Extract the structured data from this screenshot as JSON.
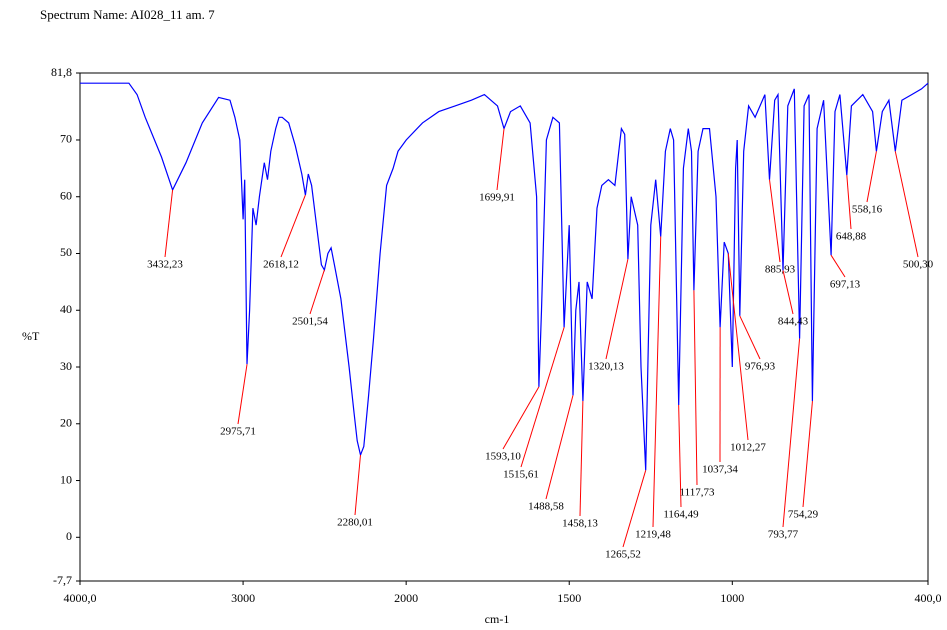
{
  "chart_data": {
    "type": "line",
    "title": "Spectrum Name: AI028_11 am. 7",
    "xlabel": "cm-1",
    "ylabel": "%T",
    "color": "#0000ff",
    "annotation_color": "#ff0000",
    "xlim": [
      4000,
      400
    ],
    "xscale_break": 2000,
    "xticks": [
      {
        "value": 4000,
        "label": "4000,0"
      },
      3000,
      2000,
      1500,
      1000,
      {
        "value": 400,
        "label": "400,0"
      }
    ],
    "ylim": [
      -7.7,
      81.8
    ],
    "yticks": [
      {
        "value": 81.8,
        "label": "81,8"
      },
      70,
      60,
      50,
      40,
      30,
      20,
      10,
      0,
      {
        "value": -7.7,
        "label": "-7,7"
      }
    ],
    "x": [
      4000,
      3700,
      3650,
      3600,
      3500,
      3432.23,
      3350,
      3250,
      3150,
      3080,
      3050,
      3020,
      3000,
      2990,
      2975.71,
      2960,
      2940,
      2920,
      2900,
      2870,
      2850,
      2830,
      2800,
      2780,
      2760,
      2720,
      2680,
      2640,
      2618.12,
      2600,
      2580,
      2550,
      2520,
      2501.54,
      2480,
      2460,
      2440,
      2400,
      2350,
      2320,
      2300,
      2280.01,
      2260,
      2230,
      2200,
      2160,
      2120,
      2080,
      2050,
      2000,
      1950,
      1900,
      1850,
      1800,
      1760,
      1720,
      1699.91,
      1680,
      1650,
      1620,
      1600,
      1593.1,
      1585,
      1570,
      1550,
      1530,
      1515.61,
      1500,
      1488.58,
      1480,
      1470,
      1458.13,
      1445,
      1430,
      1415,
      1400,
      1380,
      1360,
      1340,
      1330,
      1320.13,
      1310,
      1290,
      1280,
      1265.52,
      1250,
      1235,
      1219.48,
      1205,
      1190,
      1180,
      1164.49,
      1150,
      1135,
      1125,
      1117.73,
      1105,
      1090,
      1070,
      1050,
      1037.34,
      1025,
      1012.27,
      1000,
      990,
      985,
      976.93,
      965,
      950,
      930,
      900,
      885.93,
      870,
      860,
      844.43,
      830,
      810,
      793.77,
      780,
      765,
      754.29,
      740,
      720,
      697.13,
      685,
      670,
      648.88,
      635,
      600,
      570,
      558.16,
      540,
      520,
      500.3,
      480,
      450,
      420,
      400
    ],
    "values": [
      80,
      80,
      78,
      74,
      67,
      61.2,
      66,
      73,
      77.5,
      77,
      74,
      70,
      56,
      63,
      30.5,
      40,
      58,
      55,
      60,
      66,
      63,
      68,
      72,
      74,
      74,
      73,
      69,
      64,
      60.3,
      64,
      62,
      55,
      48,
      47.1,
      50,
      51,
      48,
      42,
      30,
      22,
      17,
      14.5,
      16,
      25,
      35,
      50,
      62,
      65,
      68,
      70,
      73,
      75,
      76,
      77,
      78,
      76,
      72,
      75,
      76,
      73,
      60,
      26.5,
      40,
      70,
      74,
      73,
      37,
      55,
      25,
      40,
      45,
      24,
      45,
      42,
      58,
      62,
      63,
      62,
      72,
      71,
      49,
      60,
      55,
      30,
      11.8,
      55,
      63,
      53,
      68,
      72,
      70,
      23.3,
      65,
      72,
      68,
      43.5,
      68,
      72,
      72,
      60,
      37,
      52,
      50,
      30,
      65,
      70,
      39,
      68,
      76,
      74,
      78,
      63,
      77,
      78,
      47,
      76,
      79,
      35,
      76,
      78,
      24,
      72,
      77,
      49.7,
      75,
      78,
      63.8,
      76,
      78,
      75,
      68,
      75,
      77,
      68,
      77,
      78,
      79,
      80
    ],
    "annotations": [
      {
        "x": 3432.23,
        "y": 61.2,
        "label": "3432,23"
      },
      {
        "x": 2975.71,
        "y": 30.5,
        "label": "2975,71"
      },
      {
        "x": 2618.12,
        "y": 60.3,
        "label": "2618,12"
      },
      {
        "x": 2501.54,
        "y": 47.1,
        "label": "2501,54"
      },
      {
        "x": 2280.01,
        "y": 14.5,
        "label": "2280,01"
      },
      {
        "x": 1699.91,
        "y": 72,
        "label": "1699,91"
      },
      {
        "x": 1593.1,
        "y": 26.5,
        "label": "1593,10"
      },
      {
        "x": 1515.61,
        "y": 37,
        "label": "1515,61"
      },
      {
        "x": 1488.58,
        "y": 25,
        "label": "1488,58"
      },
      {
        "x": 1458.13,
        "y": 24,
        "label": "1458,13"
      },
      {
        "x": 1320.13,
        "y": 49,
        "label": "1320,13"
      },
      {
        "x": 1265.52,
        "y": 11.8,
        "label": "1265,52"
      },
      {
        "x": 1219.48,
        "y": 53,
        "label": "1219,48"
      },
      {
        "x": 1164.49,
        "y": 23.3,
        "label": "1164,49"
      },
      {
        "x": 1117.73,
        "y": 43.5,
        "label": "1117,73"
      },
      {
        "x": 1037.34,
        "y": 37,
        "label": "1037,34"
      },
      {
        "x": 1012.27,
        "y": 50,
        "label": "1012,27"
      },
      {
        "x": 976.93,
        "y": 39,
        "label": "976,93"
      },
      {
        "x": 885.93,
        "y": 63,
        "label": "885,93"
      },
      {
        "x": 844.43,
        "y": 47,
        "label": "844,43"
      },
      {
        "x": 697.13,
        "y": 49.7,
        "label": "697,13"
      },
      {
        "x": 793.77,
        "y": 35,
        "label": "793,77"
      },
      {
        "x": 754.29,
        "y": 24,
        "label": "754,29"
      },
      {
        "x": 648.88,
        "y": 63.8,
        "label": "648,88"
      },
      {
        "x": 558.16,
        "y": 68,
        "label": "558,16"
      },
      {
        "x": 500.3,
        "y": 68,
        "label": "500,30"
      }
    ]
  }
}
